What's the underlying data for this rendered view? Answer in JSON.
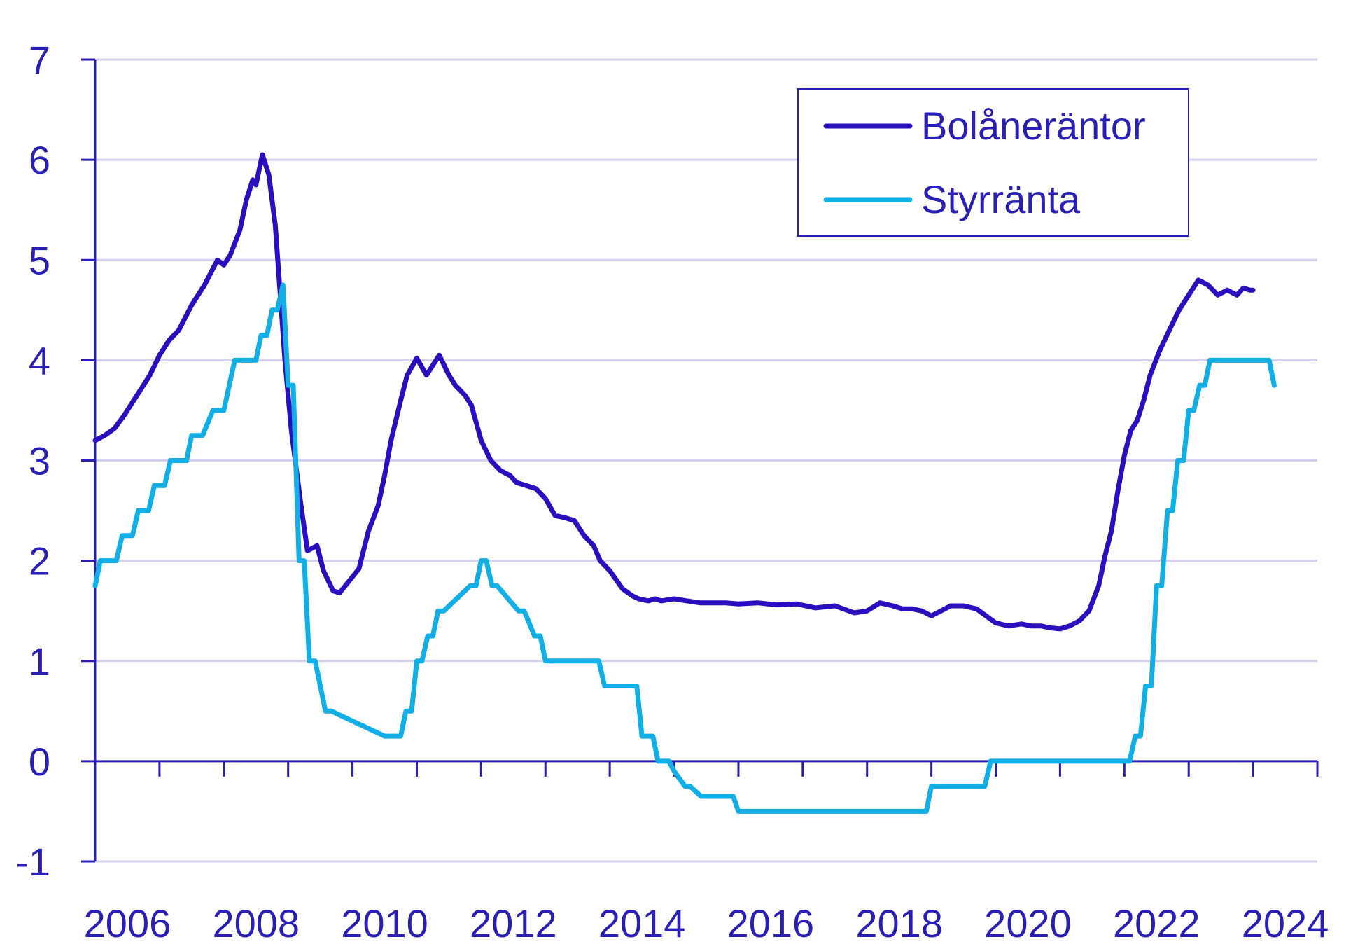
{
  "chart_data": {
    "type": "line",
    "title": "",
    "xlabel": "",
    "ylabel": "",
    "xlim": [
      2006,
      2025
    ],
    "ylim": [
      -1,
      7
    ],
    "grid": true,
    "legend_position": "top-right",
    "yticks": [
      "-1",
      "0",
      "1",
      "2",
      "3",
      "4",
      "5",
      "6",
      "7"
    ],
    "xticks": [
      "2006",
      "2008",
      "2010",
      "2012",
      "2014",
      "2016",
      "2018",
      "2020",
      "2022",
      "2024"
    ],
    "series": [
      {
        "name": "Bolåneräntor",
        "color": "#2a0fbf",
        "x": [
          2006.0,
          2006.15,
          2006.3,
          2006.45,
          2006.55,
          2006.7,
          2006.85,
          2007.0,
          2007.15,
          2007.3,
          2007.5,
          2007.7,
          2007.9,
          2008.0,
          2008.1,
          2008.25,
          2008.35,
          2008.45,
          2008.5,
          2008.6,
          2008.7,
          2008.8,
          2008.95,
          2009.05,
          2009.2,
          2009.3,
          2009.45,
          2009.55,
          2009.7,
          2009.8,
          2009.95,
          2010.1,
          2010.25,
          2010.4,
          2010.5,
          2010.6,
          2010.75,
          2010.85,
          2011.0,
          2011.15,
          2011.25,
          2011.35,
          2011.5,
          2011.6,
          2011.75,
          2011.85,
          2012.0,
          2012.15,
          2012.3,
          2012.45,
          2012.55,
          2012.7,
          2012.85,
          2013.0,
          2013.15,
          2013.3,
          2013.45,
          2013.6,
          2013.75,
          2013.85,
          2014.0,
          2014.2,
          2014.35,
          2014.45,
          2014.6,
          2014.7,
          2014.8,
          2015.0,
          2015.2,
          2015.4,
          2015.6,
          2015.8,
          2016.0,
          2016.3,
          2016.6,
          2016.9,
          2017.2,
          2017.5,
          2017.8,
          2018.0,
          2018.2,
          2018.4,
          2018.55,
          2018.7,
          2018.85,
          2019.0,
          2019.15,
          2019.3,
          2019.5,
          2019.7,
          2019.85,
          2020.0,
          2020.2,
          2020.4,
          2020.55,
          2020.7,
          2020.85,
          2021.0,
          2021.15,
          2021.3,
          2021.45,
          2021.6,
          2021.7,
          2021.8,
          2021.9,
          2022.0,
          2022.1,
          2022.2,
          2022.3,
          2022.4,
          2022.55,
          2022.7,
          2022.85,
          2023.0,
          2023.15,
          2023.3,
          2023.45,
          2023.6,
          2023.75,
          2023.85,
          2023.95,
          2024.0
        ],
        "y": [
          3.2,
          3.25,
          3.32,
          3.45,
          3.55,
          3.7,
          3.85,
          4.05,
          4.2,
          4.3,
          4.55,
          4.75,
          5.0,
          4.95,
          5.05,
          5.3,
          5.6,
          5.8,
          5.75,
          6.05,
          5.85,
          5.35,
          4.0,
          3.3,
          2.55,
          2.1,
          2.15,
          1.9,
          1.7,
          1.68,
          1.8,
          1.92,
          2.3,
          2.55,
          2.85,
          3.2,
          3.6,
          3.85,
          4.02,
          3.85,
          3.95,
          4.05,
          3.85,
          3.75,
          3.65,
          3.55,
          3.2,
          3.0,
          2.9,
          2.85,
          2.78,
          2.75,
          2.72,
          2.62,
          2.45,
          2.43,
          2.4,
          2.25,
          2.15,
          2.0,
          1.9,
          1.72,
          1.65,
          1.62,
          1.6,
          1.62,
          1.6,
          1.62,
          1.6,
          1.58,
          1.58,
          1.58,
          1.57,
          1.58,
          1.56,
          1.57,
          1.53,
          1.55,
          1.48,
          1.5,
          1.58,
          1.55,
          1.52,
          1.52,
          1.5,
          1.45,
          1.5,
          1.55,
          1.55,
          1.52,
          1.45,
          1.38,
          1.35,
          1.37,
          1.35,
          1.35,
          1.33,
          1.32,
          1.35,
          1.4,
          1.5,
          1.75,
          2.05,
          2.3,
          2.7,
          3.05,
          3.3,
          3.4,
          3.6,
          3.85,
          4.1,
          4.3,
          4.5,
          4.65,
          4.8,
          4.75,
          4.65,
          4.7,
          4.65,
          4.72,
          4.7,
          4.7
        ]
      },
      {
        "name": "Styrränta",
        "color": "#12aee6",
        "x": [
          2006.0,
          2006.08,
          2006.33,
          2006.42,
          2006.58,
          2006.67,
          2006.83,
          2006.92,
          2007.08,
          2007.17,
          2007.42,
          2007.5,
          2007.67,
          2007.83,
          2008.0,
          2008.17,
          2008.5,
          2008.58,
          2008.67,
          2008.75,
          2008.83,
          2008.92,
          2009.0,
          2009.08,
          2009.17,
          2009.25,
          2009.33,
          2009.42,
          2009.58,
          2009.67,
          2010.5,
          2010.58,
          2010.67,
          2010.75,
          2010.83,
          2010.92,
          2011.0,
          2011.08,
          2011.17,
          2011.25,
          2011.33,
          2011.42,
          2011.83,
          2011.92,
          2012.0,
          2012.08,
          2012.17,
          2012.25,
          2012.58,
          2012.67,
          2012.83,
          2012.92,
          2013.0,
          2013.08,
          2013.83,
          2013.92,
          2014.42,
          2014.5,
          2014.67,
          2014.75,
          2014.92,
          2015.0,
          2015.17,
          2015.25,
          2015.42,
          2015.5,
          2015.92,
          2016.0,
          2018.92,
          2019.0,
          2019.83,
          2019.92,
          2022.08,
          2022.17,
          2022.25,
          2022.33,
          2022.42,
          2022.5,
          2022.58,
          2022.67,
          2022.75,
          2022.83,
          2022.92,
          2023.0,
          2023.08,
          2023.17,
          2023.25,
          2023.33,
          2023.42,
          2023.5,
          2023.58,
          2023.67,
          2024.25,
          2024.33
        ],
        "y": [
          1.75,
          2.0,
          2.0,
          2.25,
          2.25,
          2.5,
          2.5,
          2.75,
          2.75,
          3.0,
          3.0,
          3.25,
          3.25,
          3.5,
          3.5,
          4.0,
          4.0,
          4.25,
          4.25,
          4.5,
          4.5,
          4.75,
          3.75,
          3.75,
          2.0,
          2.0,
          1.0,
          1.0,
          0.5,
          0.5,
          0.25,
          0.25,
          0.25,
          0.25,
          0.5,
          0.5,
          1.0,
          1.0,
          1.25,
          1.25,
          1.5,
          1.5,
          1.75,
          1.75,
          2.0,
          2.0,
          1.75,
          1.75,
          1.5,
          1.5,
          1.25,
          1.25,
          1.0,
          1.0,
          1.0,
          0.75,
          0.75,
          0.25,
          0.25,
          0.0,
          0.0,
          -0.1,
          -0.25,
          -0.25,
          -0.35,
          -0.35,
          -0.35,
          -0.5,
          -0.5,
          -0.25,
          -0.25,
          0.0,
          0.0,
          0.25,
          0.25,
          0.75,
          0.75,
          1.75,
          1.75,
          2.5,
          2.5,
          3.0,
          3.0,
          3.5,
          3.5,
          3.75,
          3.75,
          4.0,
          4.0,
          4.0,
          4.0,
          4.0,
          4.0,
          3.75
        ]
      }
    ]
  }
}
